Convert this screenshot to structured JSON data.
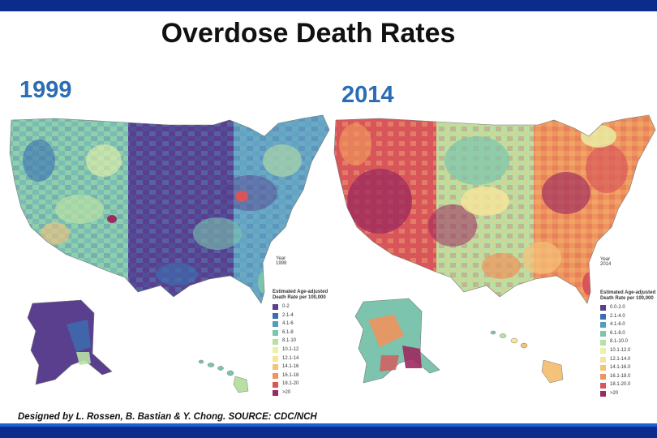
{
  "title": "Overdose Death Rates",
  "maps": [
    {
      "year_heading": "1999",
      "year_caption_label": "Year",
      "year_caption_value": "1999",
      "legend_title": "Estimated Age-adjusted Death Rate per 100,000",
      "legend": [
        {
          "label": "0-2",
          "color": "#5a3f8f"
        },
        {
          "label": "2.1-4",
          "color": "#3b6fb0"
        },
        {
          "label": "4.1-6",
          "color": "#4f9ec0"
        },
        {
          "label": "6.1-8",
          "color": "#7cc4ad"
        },
        {
          "label": "8.1-10",
          "color": "#b8e0a4"
        },
        {
          "label": "10.1-12",
          "color": "#e9f2a6"
        },
        {
          "label": "12.1-14",
          "color": "#f7e59a"
        },
        {
          "label": "14.1-16",
          "color": "#f5c27a"
        },
        {
          "label": "16.1-18",
          "color": "#ee945d"
        },
        {
          "label": "18.1-20",
          "color": "#d8565a"
        },
        {
          "label": ">20",
          "color": "#9c2a5f"
        }
      ]
    },
    {
      "year_heading": "2014",
      "year_caption_label": "Year",
      "year_caption_value": "2014",
      "legend_title": "Estimated Age-adjusted Death Rate per 100,000",
      "legend": [
        {
          "label": "0.0-2.0",
          "color": "#5a3f8f"
        },
        {
          "label": "2.1-4.0",
          "color": "#3b6fb0"
        },
        {
          "label": "4.1-6.0",
          "color": "#4f9ec0"
        },
        {
          "label": "6.1-8.0",
          "color": "#7cc4ad"
        },
        {
          "label": "8.1-10.0",
          "color": "#b8e0a4"
        },
        {
          "label": "10.1-12.0",
          "color": "#e9f2a6"
        },
        {
          "label": "12.1-14.0",
          "color": "#f7e59a"
        },
        {
          "label": "14.1-16.0",
          "color": "#f5c27a"
        },
        {
          "label": "16.1-18.0",
          "color": "#ee945d"
        },
        {
          "label": "18.1-20.0",
          "color": "#d8565a"
        },
        {
          "label": ">20",
          "color": "#9c2a5f"
        }
      ]
    }
  ],
  "credit": "Designed by L. Rossen, B. Bastian & Y. Chong. SOURCE: CDC/NCH"
}
